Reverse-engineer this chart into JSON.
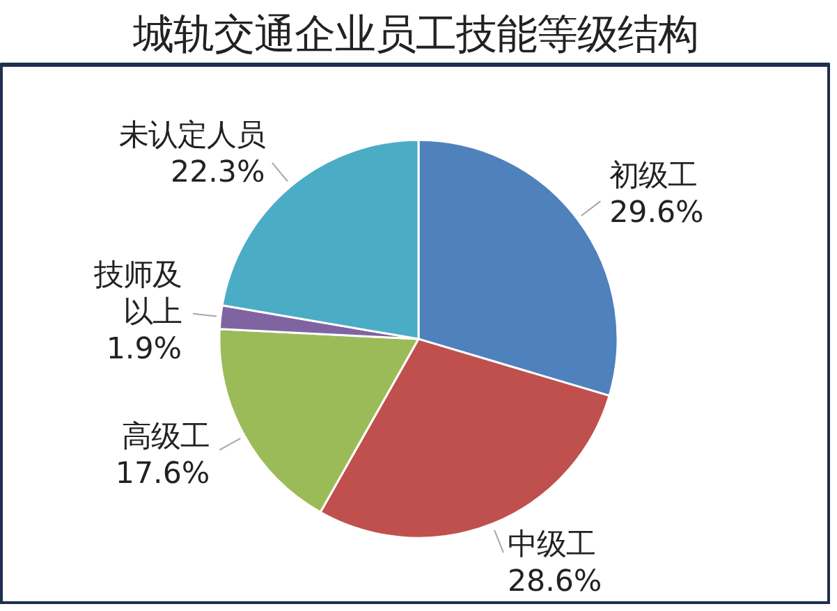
{
  "chart_data": {
    "type": "pie",
    "title": "城轨交通企业员工技能等级结构",
    "categories": [
      "初级工",
      "中级工",
      "高级工",
      "技师及以上",
      "未认定人员"
    ],
    "values": [
      29.6,
      28.6,
      17.6,
      1.9,
      22.3
    ],
    "colors": [
      "#4f81bd",
      "#c0504d",
      "#9bbb59",
      "#8064a2",
      "#4bacc6"
    ],
    "value_labels": [
      "29.6%",
      "28.6%",
      "17.6%",
      "1.9%",
      "22.3%"
    ]
  }
}
